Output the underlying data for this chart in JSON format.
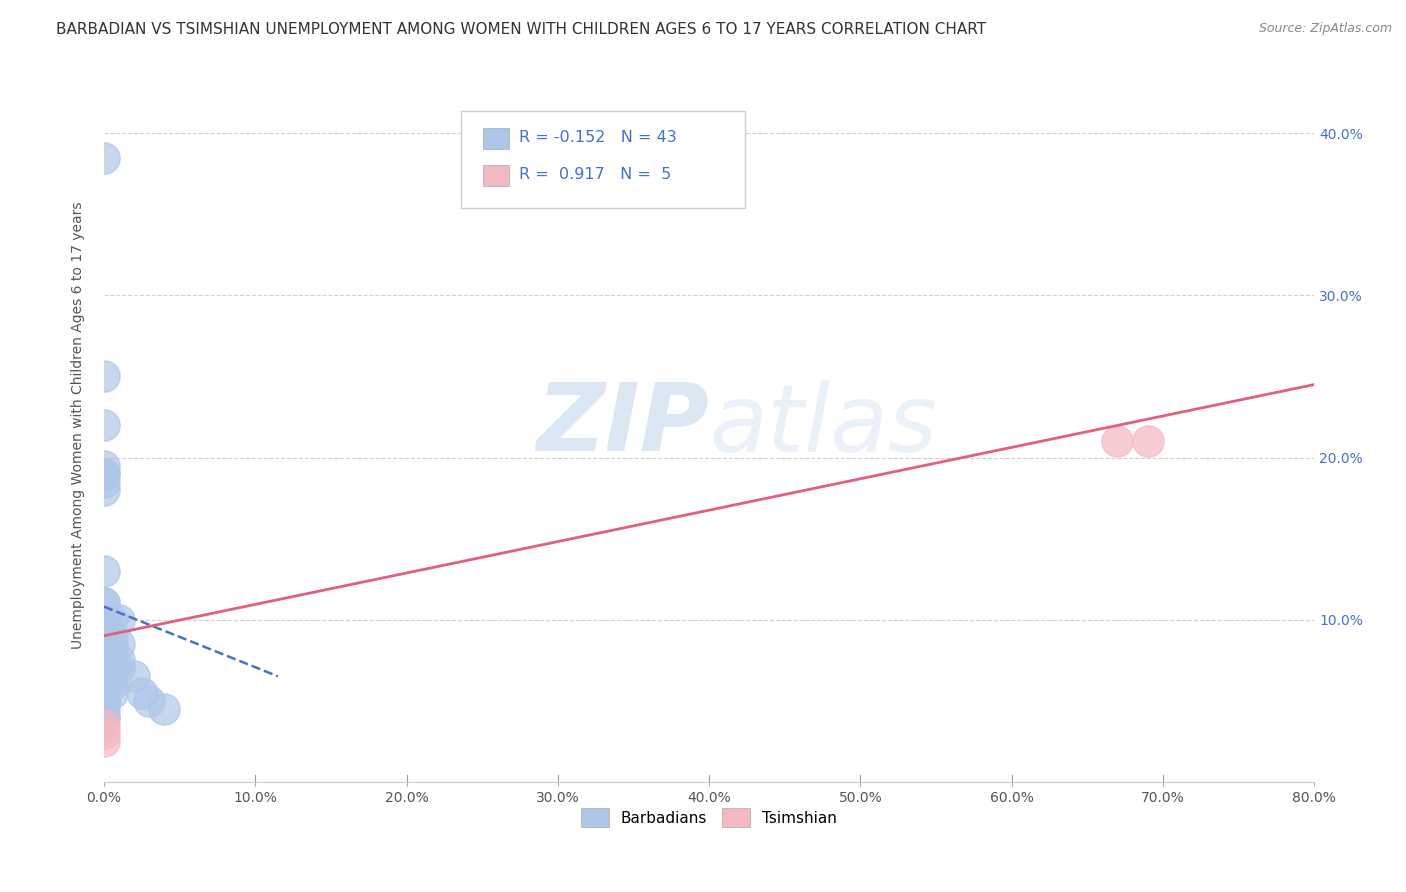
{
  "title": "BARBADIAN VS TSIMSHIAN UNEMPLOYMENT AMONG WOMEN WITH CHILDREN AGES 6 TO 17 YEARS CORRELATION CHART",
  "source": "Source: ZipAtlas.com",
  "ylabel": "Unemployment Among Women with Children Ages 6 to 17 years",
  "xlim": [
    0.0,
    0.8
  ],
  "ylim": [
    0.0,
    0.44
  ],
  "xticks": [
    0.0,
    0.1,
    0.2,
    0.3,
    0.4,
    0.5,
    0.6,
    0.7,
    0.8
  ],
  "xticklabels": [
    "0.0%",
    "10.0%",
    "20.0%",
    "30.0%",
    "40.0%",
    "50.0%",
    "60.0%",
    "70.0%",
    "80.0%"
  ],
  "yticks": [
    0.0,
    0.1,
    0.2,
    0.3,
    0.4
  ],
  "yticklabels_right": [
    "",
    "10.0%",
    "20.0%",
    "30.0%",
    "40.0%"
  ],
  "barbadian_color": "#aec6e8",
  "tsimshian_color": "#f4b8c1",
  "barbadian_line_color": "#4472c4",
  "tsimshian_line_color": "#e0607e",
  "r_barbadian": -0.152,
  "n_barbadian": 43,
  "r_tsimshian": 0.917,
  "n_tsimshian": 5,
  "legend_r_color": "#4472c4",
  "barbadian_scatter_x": [
    0.0,
    0.0,
    0.0,
    0.0,
    0.0,
    0.0,
    0.0,
    0.0,
    0.0,
    0.0,
    0.0,
    0.0,
    0.0,
    0.0,
    0.0,
    0.0,
    0.0,
    0.0,
    0.0,
    0.0,
    0.0,
    0.0,
    0.0,
    0.0,
    0.0,
    0.0,
    0.0,
    0.0,
    0.005,
    0.005,
    0.005,
    0.005,
    0.005,
    0.005,
    0.005,
    0.01,
    0.01,
    0.01,
    0.01,
    0.02,
    0.025,
    0.03,
    0.04
  ],
  "barbadian_scatter_y": [
    0.385,
    0.25,
    0.22,
    0.195,
    0.19,
    0.19,
    0.185,
    0.18,
    0.13,
    0.11,
    0.11,
    0.1,
    0.09,
    0.09,
    0.085,
    0.08,
    0.075,
    0.07,
    0.065,
    0.065,
    0.06,
    0.06,
    0.055,
    0.05,
    0.05,
    0.045,
    0.04,
    0.04,
    0.1,
    0.09,
    0.085,
    0.07,
    0.065,
    0.06,
    0.055,
    0.1,
    0.085,
    0.075,
    0.07,
    0.065,
    0.055,
    0.05,
    0.045
  ],
  "tsimshian_scatter_x": [
    0.0,
    0.0,
    0.0,
    0.67,
    0.69
  ],
  "tsimshian_scatter_y": [
    0.035,
    0.03,
    0.025,
    0.21,
    0.21
  ],
  "barbadian_trendline_x": [
    0.0,
    0.115
  ],
  "barbadian_trendline_y": [
    0.108,
    0.065
  ],
  "tsimshian_trendline_x": [
    0.0,
    0.8
  ],
  "tsimshian_trendline_y": [
    0.09,
    0.245
  ],
  "watermark_zip": "ZIP",
  "watermark_atlas": "atlas",
  "background_color": "#ffffff",
  "grid_color": "#d0d0d0",
  "title_fontsize": 11,
  "axis_fontsize": 10,
  "tick_fontsize": 10,
  "scatter_size": 500,
  "scatter_lw": 1.2
}
